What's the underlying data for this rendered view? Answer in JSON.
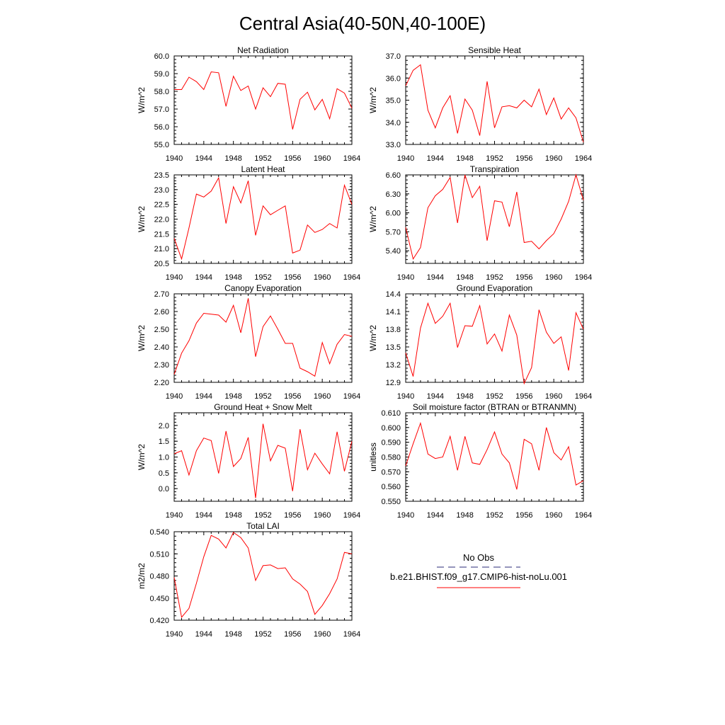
{
  "title": "Central Asia(40-50N,40-100E)",
  "colors": {
    "model": "#ff0000",
    "obs": "#2a2a7a"
  },
  "legend": {
    "obs_label": "No Obs",
    "model_label": "b.e21.BHIST.f09_g17.CMIP6-hist-noLu.001"
  },
  "chart_data": [
    {
      "type": "line",
      "title": "Net Radiation",
      "ylabel": "W/m^2",
      "xlim": [
        1940,
        1964
      ],
      "ylim": [
        55.0,
        60.0
      ],
      "xticks": [
        1940,
        1944,
        1948,
        1952,
        1956,
        1960,
        1964
      ],
      "xtick_labels": [
        "1940",
        "1944",
        "1948",
        "1952",
        "1956",
        "1960",
        "1964"
      ],
      "yticks": [
        55.0,
        56.0,
        57.0,
        58.0,
        59.0,
        60.0
      ],
      "ytick_labels": [
        "55.0",
        "56.0",
        "57.0",
        "58.0",
        "59.0",
        "60.0"
      ],
      "series": [
        {
          "name": "b.e21.BHIST.f09_g17.CMIP6-hist-noLu.001",
          "x": [
            1940,
            1941,
            1942,
            1943,
            1944,
            1945,
            1946,
            1947,
            1948,
            1949,
            1950,
            1951,
            1952,
            1953,
            1954,
            1955,
            1956,
            1957,
            1958,
            1959,
            1960,
            1961,
            1962,
            1963,
            1964
          ],
          "y": [
            58.1,
            58.1,
            58.8,
            58.55,
            58.1,
            59.1,
            59.05,
            57.15,
            58.85,
            58.05,
            58.3,
            57.0,
            58.2,
            57.7,
            58.45,
            58.4,
            55.85,
            57.55,
            57.95,
            56.95,
            57.55,
            56.45,
            58.15,
            57.9,
            57.05
          ]
        }
      ]
    },
    {
      "type": "line",
      "title": "Sensible Heat",
      "ylabel": "W/m^2",
      "xlim": [
        1940,
        1964
      ],
      "ylim": [
        33.0,
        37.0
      ],
      "xticks": [
        1940,
        1944,
        1948,
        1952,
        1956,
        1960,
        1964
      ],
      "xtick_labels": [
        "1940",
        "1944",
        "1948",
        "1952",
        "1956",
        "1960",
        "1964"
      ],
      "yticks": [
        33.0,
        34.0,
        35.0,
        36.0,
        37.0
      ],
      "ytick_labels": [
        "33.0",
        "34.0",
        "35.0",
        "36.0",
        "37.0"
      ],
      "series": [
        {
          "name": "b.e21.BHIST.f09_g17.CMIP6-hist-noLu.001",
          "x": [
            1940,
            1941,
            1942,
            1943,
            1944,
            1945,
            1946,
            1947,
            1948,
            1949,
            1950,
            1951,
            1952,
            1953,
            1954,
            1955,
            1956,
            1957,
            1958,
            1959,
            1960,
            1961,
            1962,
            1963,
            1964
          ],
          "y": [
            35.65,
            36.35,
            36.6,
            34.55,
            33.75,
            34.65,
            35.2,
            33.5,
            35.05,
            34.55,
            33.4,
            35.85,
            33.75,
            34.7,
            34.75,
            34.65,
            35.0,
            34.7,
            35.5,
            34.35,
            35.1,
            34.15,
            34.65,
            34.2,
            33.1
          ]
        }
      ]
    },
    {
      "type": "line",
      "title": "Latent Heat",
      "ylabel": "W/m^2",
      "xlim": [
        1940,
        1964
      ],
      "ylim": [
        20.5,
        23.5
      ],
      "xticks": [
        1940,
        1944,
        1948,
        1952,
        1956,
        1960,
        1964
      ],
      "xtick_labels": [
        "1940",
        "1944",
        "1948",
        "1952",
        "1956",
        "1960",
        "1964"
      ],
      "yticks": [
        20.5,
        21.0,
        21.5,
        22.0,
        22.5,
        23.0,
        23.5
      ],
      "ytick_labels": [
        "20.5",
        "21.0",
        "21.5",
        "22.0",
        "22.5",
        "23.0",
        "23.5"
      ],
      "series": [
        {
          "name": "b.e21.BHIST.f09_g17.CMIP6-hist-noLu.001",
          "x": [
            1940,
            1941,
            1942,
            1943,
            1944,
            1945,
            1946,
            1947,
            1948,
            1949,
            1950,
            1951,
            1952,
            1953,
            1954,
            1955,
            1956,
            1957,
            1958,
            1959,
            1960,
            1961,
            1962,
            1963,
            1964
          ],
          "y": [
            21.35,
            20.65,
            21.7,
            22.85,
            22.75,
            22.95,
            23.4,
            21.85,
            23.1,
            22.55,
            23.3,
            21.45,
            22.45,
            22.15,
            22.3,
            22.45,
            20.85,
            20.95,
            21.8,
            21.55,
            21.65,
            21.85,
            21.7,
            23.15,
            22.5
          ]
        }
      ]
    },
    {
      "type": "line",
      "title": "Transpiration",
      "ylabel": "W/m^2",
      "xlim": [
        1940,
        1964
      ],
      "ylim": [
        5.2,
        6.6
      ],
      "xticks": [
        1940,
        1944,
        1948,
        1952,
        1956,
        1960,
        1964
      ],
      "xtick_labels": [
        "1940",
        "1944",
        "1948",
        "1952",
        "1956",
        "1960",
        "1964"
      ],
      "yticks": [
        5.4,
        5.7,
        6.0,
        6.3,
        6.6
      ],
      "ytick_labels": [
        "5.40",
        "5.70",
        "6.00",
        "6.30",
        "6.60"
      ],
      "series": [
        {
          "name": "b.e21.BHIST.f09_g17.CMIP6-hist-noLu.001",
          "x": [
            1940,
            1941,
            1942,
            1943,
            1944,
            1945,
            1946,
            1947,
            1948,
            1949,
            1950,
            1951,
            1952,
            1953,
            1954,
            1955,
            1956,
            1957,
            1958,
            1959,
            1960,
            1961,
            1962,
            1963,
            1964
          ],
          "y": [
            5.77,
            5.27,
            5.45,
            6.08,
            6.27,
            6.37,
            6.56,
            5.84,
            6.6,
            6.24,
            6.42,
            5.56,
            6.19,
            6.17,
            5.78,
            6.33,
            5.53,
            5.55,
            5.43,
            5.56,
            5.67,
            5.9,
            6.18,
            6.6,
            6.2
          ]
        }
      ]
    },
    {
      "type": "line",
      "title": "Canopy Evaporation",
      "ylabel": "W/m^2",
      "xlim": [
        1940,
        1964
      ],
      "ylim": [
        2.2,
        2.7
      ],
      "xticks": [
        1940,
        1944,
        1948,
        1952,
        1956,
        1960,
        1964
      ],
      "xtick_labels": [
        "1940",
        "1944",
        "1948",
        "1952",
        "1956",
        "1960",
        "1964"
      ],
      "yticks": [
        2.2,
        2.3,
        2.4,
        2.5,
        2.6,
        2.7
      ],
      "ytick_labels": [
        "2.20",
        "2.30",
        "2.40",
        "2.50",
        "2.60",
        "2.70"
      ],
      "series": [
        {
          "name": "b.e21.BHIST.f09_g17.CMIP6-hist-noLu.001",
          "x": [
            1940,
            1941,
            1942,
            1943,
            1944,
            1945,
            1946,
            1947,
            1948,
            1949,
            1950,
            1951,
            1952,
            1953,
            1954,
            1955,
            1956,
            1957,
            1958,
            1959,
            1960,
            1961,
            1962,
            1963,
            1964
          ],
          "y": [
            2.245,
            2.365,
            2.435,
            2.535,
            2.59,
            2.585,
            2.58,
            2.54,
            2.635,
            2.48,
            2.675,
            2.345,
            2.515,
            2.575,
            2.5,
            2.42,
            2.42,
            2.28,
            2.26,
            2.235,
            2.425,
            2.305,
            2.415,
            2.47,
            2.46
          ]
        }
      ]
    },
    {
      "type": "line",
      "title": "Ground Evaporation",
      "ylabel": "W/m^2",
      "xlim": [
        1940,
        1964
      ],
      "ylim": [
        12.9,
        14.4
      ],
      "xticks": [
        1940,
        1944,
        1948,
        1952,
        1956,
        1960,
        1964
      ],
      "xtick_labels": [
        "1940",
        "1944",
        "1948",
        "1952",
        "1956",
        "1960",
        "1964"
      ],
      "yticks": [
        12.9,
        13.2,
        13.5,
        13.8,
        14.1,
        14.4
      ],
      "ytick_labels": [
        "12.9",
        "13.2",
        "13.5",
        "13.8",
        "14.1",
        "14.4"
      ],
      "series": [
        {
          "name": "b.e21.BHIST.f09_g17.CMIP6-hist-noLu.001",
          "x": [
            1940,
            1941,
            1942,
            1943,
            1944,
            1945,
            1946,
            1947,
            1948,
            1949,
            1950,
            1951,
            1952,
            1953,
            1954,
            1955,
            1956,
            1957,
            1958,
            1959,
            1960,
            1961,
            1962,
            1963,
            1964
          ],
          "y": [
            13.4,
            13.0,
            13.82,
            14.24,
            13.9,
            14.02,
            14.24,
            13.49,
            13.86,
            13.85,
            14.2,
            13.55,
            13.72,
            13.43,
            14.04,
            13.7,
            12.88,
            13.15,
            14.13,
            13.75,
            13.56,
            13.67,
            13.1,
            14.08,
            13.8
          ]
        }
      ]
    },
    {
      "type": "line",
      "title": "Ground Heat + Snow Melt",
      "ylabel": "W/m^2",
      "xlim": [
        1940,
        1964
      ],
      "ylim": [
        -0.4,
        2.4
      ],
      "xticks": [
        1940,
        1944,
        1948,
        1952,
        1956,
        1960,
        1964
      ],
      "xtick_labels": [
        "1940",
        "1944",
        "1948",
        "1952",
        "1956",
        "1960",
        "1964"
      ],
      "yticks": [
        0.0,
        0.5,
        1.0,
        1.5,
        2.0
      ],
      "ytick_labels": [
        "0.0",
        "0.5",
        "1.0",
        "1.5",
        "2.0"
      ],
      "series": [
        {
          "name": "b.e21.BHIST.f09_g17.CMIP6-hist-noLu.001",
          "x": [
            1940,
            1941,
            1942,
            1943,
            1944,
            1945,
            1946,
            1947,
            1948,
            1949,
            1950,
            1951,
            1952,
            1953,
            1954,
            1955,
            1956,
            1957,
            1958,
            1959,
            1960,
            1961,
            1962,
            1963,
            1964
          ],
          "y": [
            1.1,
            1.2,
            0.43,
            1.2,
            1.6,
            1.52,
            0.48,
            1.82,
            0.7,
            0.95,
            1.62,
            -0.3,
            2.05,
            0.88,
            1.37,
            1.28,
            -0.08,
            1.88,
            0.6,
            1.12,
            0.78,
            0.47,
            1.8,
            0.55,
            1.5
          ]
        }
      ]
    },
    {
      "type": "line",
      "title": "Soil moisture factor (BTRAN or BTRANMN)",
      "ylabel": "unitless",
      "xlim": [
        1940,
        1964
      ],
      "ylim": [
        0.55,
        0.61
      ],
      "xticks": [
        1940,
        1944,
        1948,
        1952,
        1956,
        1960,
        1964
      ],
      "xtick_labels": [
        "1940",
        "1944",
        "1948",
        "1952",
        "1956",
        "1960",
        "1964"
      ],
      "yticks": [
        0.55,
        0.56,
        0.57,
        0.58,
        0.59,
        0.6,
        0.61
      ],
      "ytick_labels": [
        "0.550",
        "0.560",
        "0.570",
        "0.580",
        "0.590",
        "0.600",
        "0.610"
      ],
      "series": [
        {
          "name": "b.e21.BHIST.f09_g17.CMIP6-hist-noLu.001",
          "x": [
            1940,
            1941,
            1942,
            1943,
            1944,
            1945,
            1946,
            1947,
            1948,
            1949,
            1950,
            1951,
            1952,
            1953,
            1954,
            1955,
            1956,
            1957,
            1958,
            1959,
            1960,
            1961,
            1962,
            1963,
            1964
          ],
          "y": [
            0.574,
            0.589,
            0.603,
            0.582,
            0.579,
            0.58,
            0.594,
            0.571,
            0.594,
            0.576,
            0.575,
            0.585,
            0.597,
            0.582,
            0.576,
            0.558,
            0.592,
            0.589,
            0.571,
            0.6,
            0.583,
            0.578,
            0.587,
            0.561,
            0.564
          ]
        }
      ]
    },
    {
      "type": "line",
      "title": "Total LAI",
      "ylabel": "m2/m2",
      "xlim": [
        1940,
        1964
      ],
      "ylim": [
        0.42,
        0.54
      ],
      "xticks": [
        1940,
        1944,
        1948,
        1952,
        1956,
        1960,
        1964
      ],
      "xtick_labels": [
        "1940",
        "1944",
        "1948",
        "1952",
        "1956",
        "1960",
        "1964"
      ],
      "yticks": [
        0.42,
        0.45,
        0.48,
        0.51,
        0.54
      ],
      "ytick_labels": [
        "0.420",
        "0.450",
        "0.480",
        "0.510",
        "0.540"
      ],
      "series": [
        {
          "name": "b.e21.BHIST.f09_g17.CMIP6-hist-noLu.001",
          "x": [
            1940,
            1941,
            1942,
            1943,
            1944,
            1945,
            1946,
            1947,
            1948,
            1949,
            1950,
            1951,
            1952,
            1953,
            1954,
            1955,
            1956,
            1957,
            1958,
            1959,
            1960,
            1961,
            1962,
            1963,
            1964
          ],
          "y": [
            0.478,
            0.424,
            0.436,
            0.47,
            0.506,
            0.535,
            0.53,
            0.518,
            0.539,
            0.532,
            0.518,
            0.474,
            0.494,
            0.495,
            0.49,
            0.491,
            0.476,
            0.469,
            0.459,
            0.428,
            0.44,
            0.456,
            0.476,
            0.512,
            0.51
          ]
        }
      ]
    }
  ]
}
